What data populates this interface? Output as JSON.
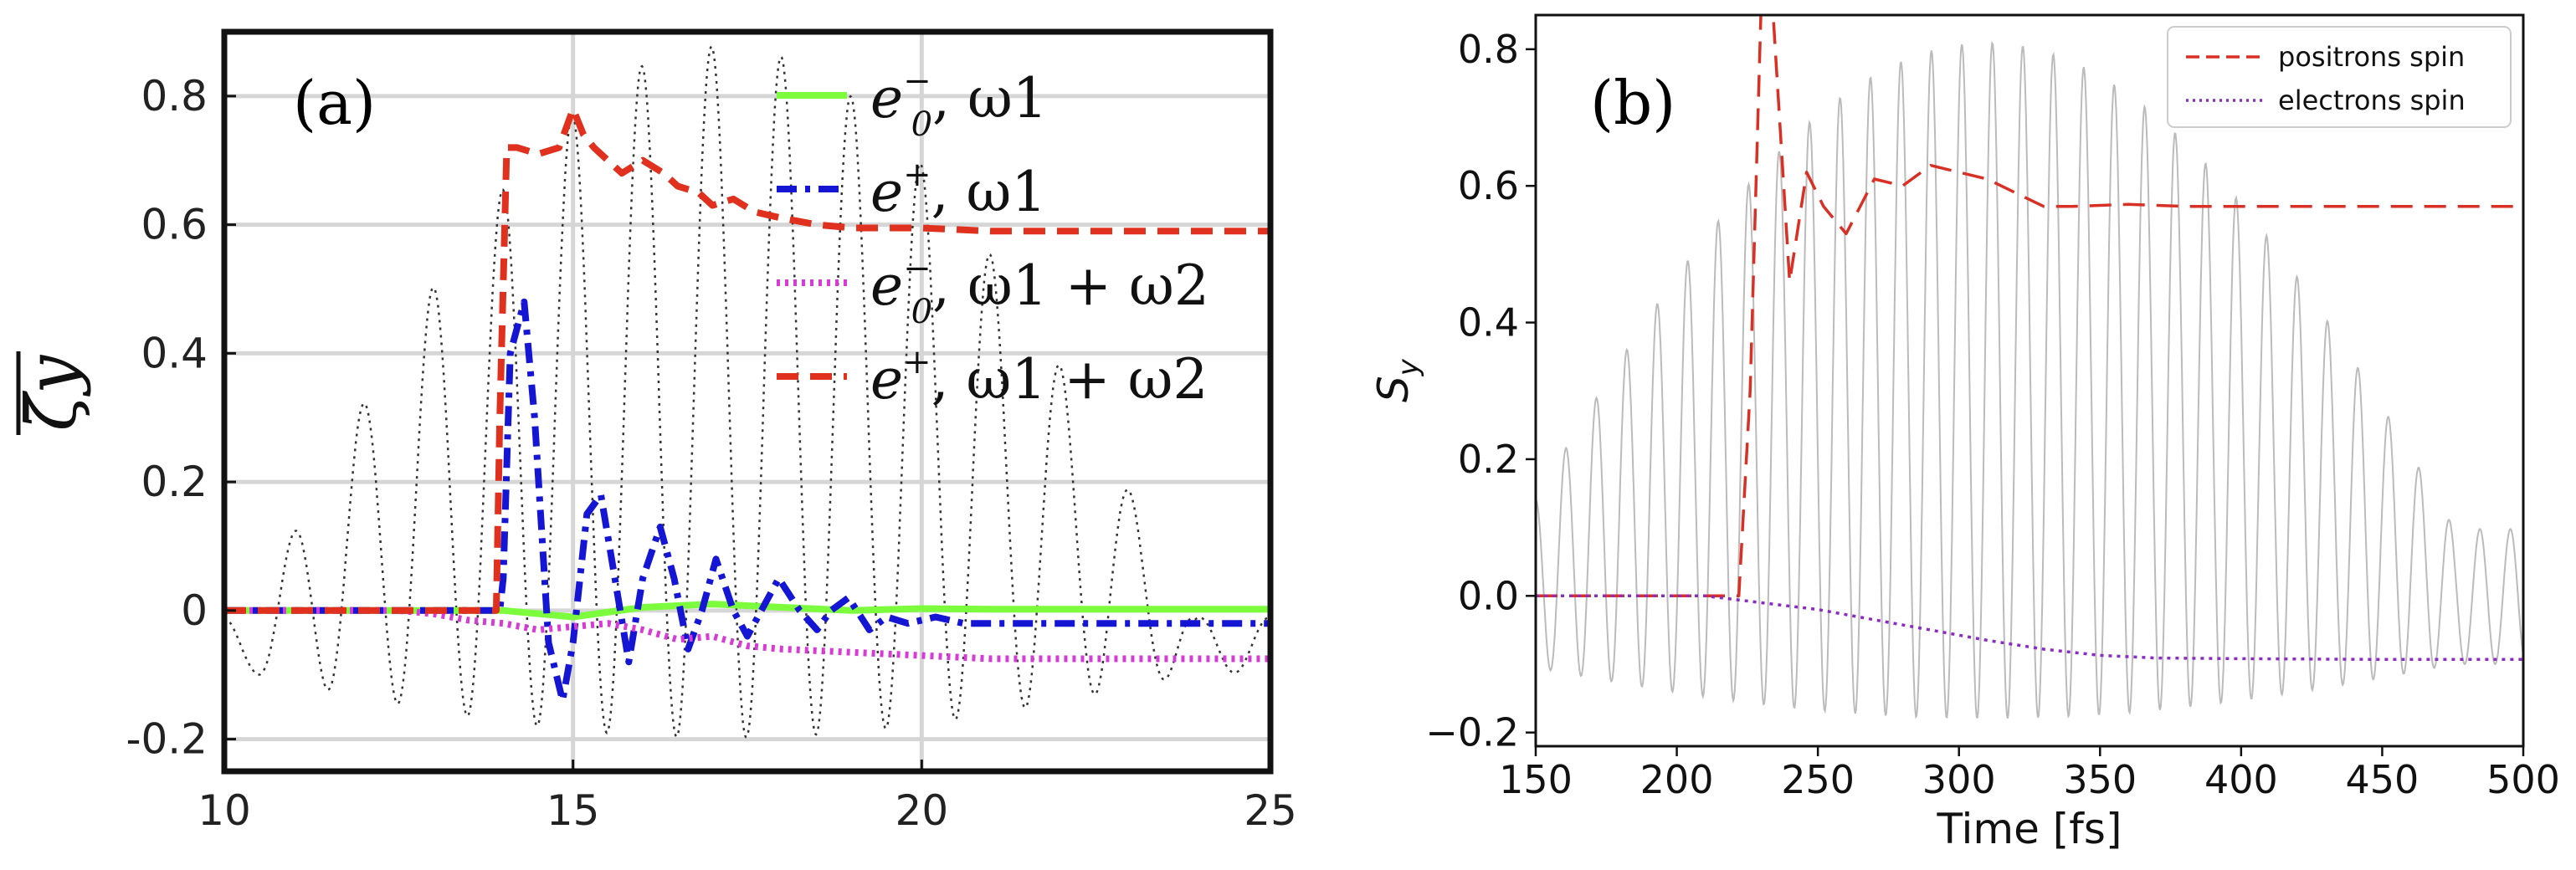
{
  "chart_data": [
    {
      "panel": "(a)",
      "type": "line",
      "ylabel": "ζ̄y",
      "xlim": [
        10,
        25
      ],
      "ylim": [
        -0.25,
        0.9
      ],
      "xticks": [
        "10",
        "15",
        "20",
        "25"
      ],
      "yticks": [
        "-0.2",
        "0",
        "0.2",
        "0.4",
        "0.6",
        "0.8"
      ],
      "ytick_values": [
        -0.2,
        0,
        0.2,
        0.4,
        0.6,
        0.8
      ],
      "xtick_values": [
        10,
        15,
        20,
        25
      ],
      "grid": true,
      "legend_position": "top-right",
      "background_field": {
        "style": "dotted",
        "color": "#333333",
        "period": 1.0,
        "start": 10,
        "end": 25,
        "envelope_peak": 0.9,
        "min": -0.22
      },
      "series": [
        {
          "name": "e0−, ω1",
          "legend_main": "e",
          "legend_sub": "0",
          "legend_sup": "−",
          "legend_rest": ", ω1",
          "color": "#7CFC3C",
          "style": "solid",
          "x": [
            10,
            14.0,
            15,
            16,
            17,
            18,
            19,
            20,
            21,
            25
          ],
          "y": [
            0,
            0,
            -0.01,
            0.005,
            0.01,
            0.005,
            0.0,
            0.003,
            0.002,
            0.002
          ]
        },
        {
          "name": "e+, ω1",
          "legend_main": "e",
          "legend_sub": "",
          "legend_sup": "+",
          "legend_rest": ", ω1",
          "color": "#1515D4",
          "style": "dashdot",
          "x": [
            10,
            13.95,
            14.0,
            14.1,
            14.3,
            14.45,
            14.65,
            14.85,
            15.0,
            15.2,
            15.4,
            15.6,
            15.8,
            16.0,
            16.25,
            16.45,
            16.65,
            16.85,
            17.05,
            17.3,
            17.5,
            17.7,
            17.95,
            18.25,
            18.5,
            18.7,
            18.95,
            19.25,
            19.5,
            19.8,
            20.2,
            20.6,
            21.0,
            25
          ],
          "y": [
            0,
            0,
            0.05,
            0.4,
            0.48,
            0.3,
            -0.05,
            -0.14,
            -0.05,
            0.15,
            0.18,
            0.05,
            -0.08,
            0.05,
            0.13,
            0.05,
            -0.06,
            0.0,
            0.08,
            0.0,
            -0.04,
            0.0,
            0.05,
            0.0,
            -0.03,
            0.0,
            0.02,
            -0.03,
            -0.01,
            -0.02,
            -0.01,
            -0.02,
            -0.02,
            -0.02
          ]
        },
        {
          "name": "e0−, ω1 + ω2",
          "legend_main": "e",
          "legend_sub": "0",
          "legend_sup": "−",
          "legend_rest": ", ω1 + ω2",
          "color": "#D63BD6",
          "style": "dotted",
          "x": [
            10,
            12.5,
            13.0,
            13.5,
            14.0,
            14.5,
            15.0,
            15.5,
            16.0,
            16.5,
            17.0,
            17.5,
            18.0,
            19.0,
            20.0,
            21.0,
            25
          ],
          "y": [
            0,
            0,
            -0.005,
            -0.015,
            -0.02,
            -0.03,
            -0.025,
            -0.02,
            -0.03,
            -0.045,
            -0.04,
            -0.055,
            -0.06,
            -0.065,
            -0.07,
            -0.075,
            -0.075
          ]
        },
        {
          "name": "e+, ω1 + ω2",
          "legend_main": "e",
          "legend_sub": "",
          "legend_sup": "+",
          "legend_rest": ", ω1 + ω2",
          "color": "#E0301E",
          "style": "dashed",
          "x": [
            10,
            13.9,
            13.95,
            14.05,
            14.2,
            14.5,
            14.8,
            15.0,
            15.15,
            15.3,
            15.5,
            15.7,
            16.0,
            16.3,
            16.5,
            16.8,
            17.0,
            17.3,
            17.6,
            18.0,
            18.5,
            19.0,
            20.0,
            21.0,
            25
          ],
          "y": [
            0,
            0,
            0.3,
            0.72,
            0.72,
            0.71,
            0.72,
            0.78,
            0.74,
            0.72,
            0.7,
            0.68,
            0.7,
            0.68,
            0.66,
            0.65,
            0.63,
            0.64,
            0.62,
            0.61,
            0.6,
            0.595,
            0.595,
            0.59,
            0.59
          ]
        }
      ]
    },
    {
      "panel": "(b)",
      "type": "line",
      "xlabel": "Time [fs]",
      "ylabel": "Sy",
      "xlim": [
        150,
        500
      ],
      "ylim": [
        -0.22,
        0.85
      ],
      "xticks": [
        "150",
        "200",
        "250",
        "300",
        "350",
        "400",
        "450",
        "500"
      ],
      "xtick_values": [
        150,
        200,
        250,
        300,
        350,
        400,
        450,
        500
      ],
      "yticks": [
        "−0.2",
        "0.0",
        "0.2",
        "0.4",
        "0.6",
        "0.8"
      ],
      "ytick_values": [
        -0.2,
        0.0,
        0.2,
        0.4,
        0.6,
        0.8
      ],
      "grid": false,
      "legend_position": "top-right",
      "background_field": {
        "style": "solid",
        "color": "#BBBBBB",
        "period": 10.8,
        "start": 150,
        "end": 500,
        "envelope_peak": 0.83,
        "min": -0.2
      },
      "series": [
        {
          "name": "positrons spin",
          "color": "#D93025",
          "style": "dashed",
          "x": [
            150,
            222,
            226,
            230,
            234,
            240,
            246,
            252,
            260,
            270,
            280,
            290,
            300,
            310,
            320,
            330,
            340,
            360,
            380,
            400,
            450,
            500
          ],
          "y": [
            0,
            0,
            0.3,
            0.88,
            0.86,
            0.46,
            0.62,
            0.57,
            0.53,
            0.61,
            0.6,
            0.63,
            0.62,
            0.61,
            0.59,
            0.57,
            0.57,
            0.573,
            0.57,
            0.57,
            0.57,
            0.57
          ]
        },
        {
          "name": "electrons spin",
          "color": "#8A2BC2",
          "style": "dotted",
          "x": [
            150,
            210,
            230,
            250,
            270,
            290,
            310,
            330,
            350,
            370,
            400,
            450,
            500
          ],
          "y": [
            0,
            0,
            -0.01,
            -0.02,
            -0.035,
            -0.05,
            -0.065,
            -0.078,
            -0.087,
            -0.091,
            -0.092,
            -0.093,
            -0.093
          ]
        }
      ]
    }
  ]
}
